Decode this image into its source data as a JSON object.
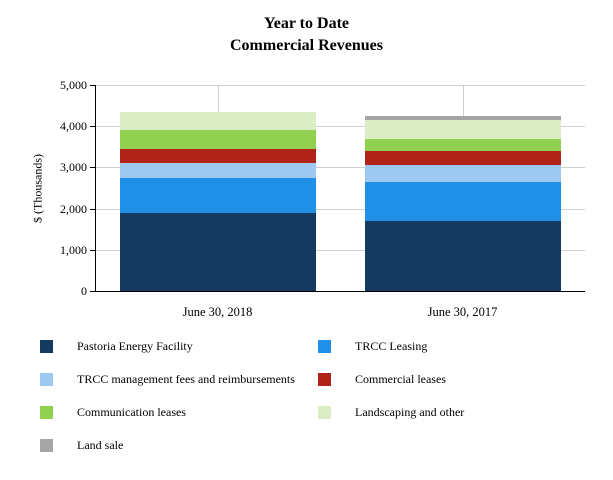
{
  "title": {
    "line1": "Year to Date",
    "line2": "Commercial Revenues"
  },
  "chart_data": {
    "type": "bar",
    "stacked": true,
    "title": "Year to Date Commercial Revenues",
    "categories": [
      "June 30, 2018",
      "June 30, 2017"
    ],
    "series": [
      {
        "name": "Pastoria Energy Facility",
        "color": "#153a5f",
        "values": [
          1900,
          1700
        ]
      },
      {
        "name": "TRCC Leasing",
        "color": "#1f8fe8",
        "values": [
          850,
          950
        ]
      },
      {
        "name": "TRCC management fees and reimbursements",
        "color": "#9dc9f0",
        "values": [
          350,
          400
        ]
      },
      {
        "name": "Commercial leases",
        "color": "#b02318",
        "values": [
          350,
          350
        ]
      },
      {
        "name": "Communication leases",
        "color": "#92d050",
        "values": [
          450,
          300
        ]
      },
      {
        "name": "Landscaping and other",
        "color": "#dbedc4",
        "values": [
          450,
          450
        ]
      },
      {
        "name": "Land sale",
        "color": "#a5a5a5",
        "values": [
          0,
          100
        ]
      }
    ],
    "xlabel": "",
    "ylabel": "$ (Thousands)",
    "ylim": [
      0,
      5000
    ],
    "ytick_interval": 1000,
    "ytick_labels": [
      "0",
      "1,000",
      "2,000",
      "3,000",
      "4,000",
      "5,000"
    ],
    "grid": true,
    "legend_position": "bottom"
  }
}
